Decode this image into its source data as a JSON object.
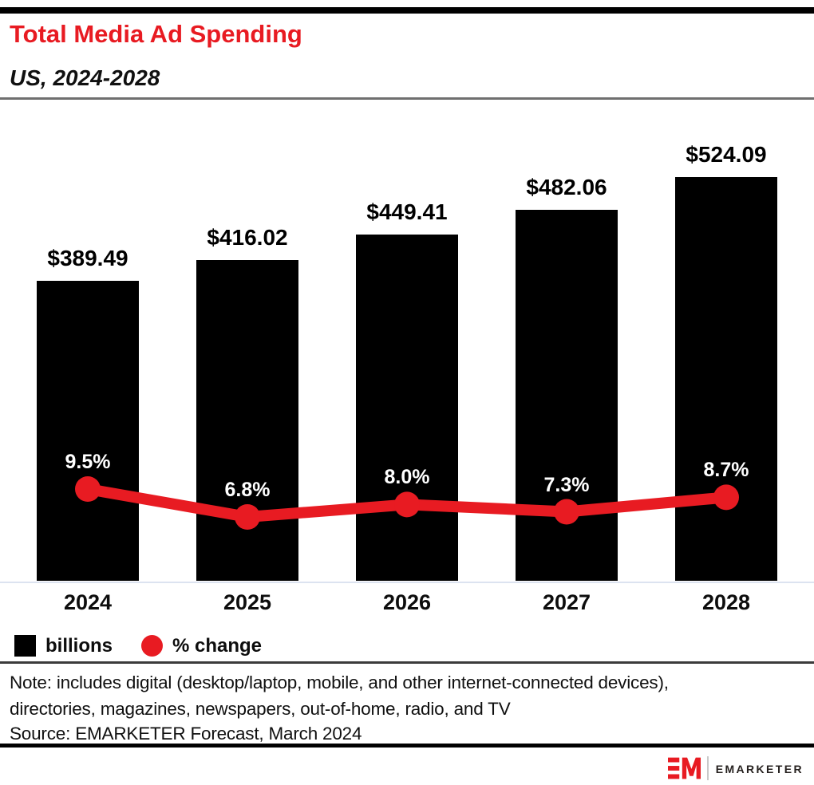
{
  "header": {
    "title": "Total Media Ad Spending",
    "subtitle": "US, 2024-2028"
  },
  "chart_data": {
    "type": "bar",
    "title": "Total Media Ad Spending",
    "subtitle": "US, 2024-2028",
    "categories": [
      "2024",
      "2025",
      "2026",
      "2027",
      "2028"
    ],
    "series": [
      {
        "name": "billions",
        "type": "bar",
        "values": [
          389.49,
          416.02,
          449.41,
          482.06,
          524.09
        ],
        "labels": [
          "$389.49",
          "$416.02",
          "$449.41",
          "$482.06",
          "$524.09"
        ],
        "unit": "billions of US dollars",
        "color": "#000000"
      },
      {
        "name": "% change",
        "type": "line",
        "values": [
          9.5,
          6.8,
          8.0,
          7.3,
          8.7
        ],
        "labels": [
          "9.5%",
          "6.8%",
          "8.0%",
          "7.3%",
          "8.7%"
        ],
        "unit": "percent change",
        "color": "#e81b22"
      }
    ],
    "legend": [
      {
        "label": "billions",
        "swatch": "square",
        "color": "#000000"
      },
      {
        "label": "% change",
        "swatch": "circle",
        "color": "#e81b22"
      }
    ],
    "legend_position": "bottom-left",
    "grid": false,
    "xlabel": "",
    "ylabel": ""
  },
  "footer": {
    "note_line1": "Note: includes digital (desktop/laptop, mobile, and other internet-connected devices),",
    "note_line2": "directories, magazines, newspapers, out-of-home, radio, and TV",
    "source": "Source: EMARKETER Forecast, March 2024"
  },
  "logo": {
    "brand": "EMARKETER",
    "mark": "EM-monogram",
    "color": "#e81b22"
  },
  "colors": {
    "accent_red": "#e81b22",
    "bar_black": "#000000",
    "axis_line": "#dce3f0",
    "top_bar": "#000000"
  }
}
